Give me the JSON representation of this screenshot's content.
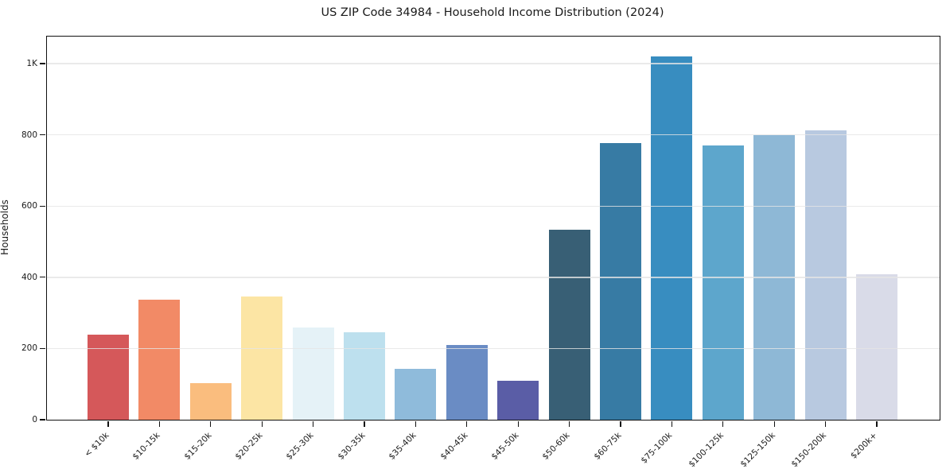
{
  "title": "US ZIP Code 34984 - Household Income Distribution (2024)",
  "chart_data": {
    "type": "bar",
    "title": "US ZIP Code 34984 - Household Income Distribution (2024)",
    "xlabel": "",
    "ylabel": "Households",
    "categories": [
      "< $10k",
      "$10-15k",
      "$15-20k",
      "$20-25k",
      "$25-30k",
      "$30-35k",
      "$35-40k",
      "$40-45k",
      "$45-50k",
      "$50-60k",
      "$60-75k",
      "$75-100k",
      "$100-125k",
      "$125-150k",
      "$150-200k",
      "$200k+"
    ],
    "values": [
      240,
      338,
      103,
      347,
      260,
      245,
      143,
      209,
      110,
      533,
      776,
      1020,
      770,
      800,
      813,
      409
    ],
    "bar_colors": [
      "#d5585a",
      "#f28a66",
      "#fabd7e",
      "#fce5a4",
      "#e5f2f7",
      "#bde0ee",
      "#8fbbdb",
      "#6a8cc4",
      "#5a5da6",
      "#385f75",
      "#377ba4",
      "#388dc0",
      "#5da6cc",
      "#8eb8d6",
      "#b8c9e0",
      "#d9dbe8"
    ],
    "ylim": [
      0,
      1076
    ],
    "yticks": [
      {
        "value": 0,
        "label": "0"
      },
      {
        "value": 200,
        "label": "200"
      },
      {
        "value": 400,
        "label": "400"
      },
      {
        "value": 600,
        "label": "600"
      },
      {
        "value": 800,
        "label": "800"
      },
      {
        "value": 1000,
        "label": "1K"
      }
    ],
    "grid": "horizontal gridlines at y ticks, light gray, drawn over bars",
    "legend": "none",
    "x_tick_rotation_degrees": 45
  },
  "colors": {
    "background": "#ffffff",
    "spine": "#111111",
    "grid": "#e5e5e5",
    "text": "#1a1a1a"
  }
}
